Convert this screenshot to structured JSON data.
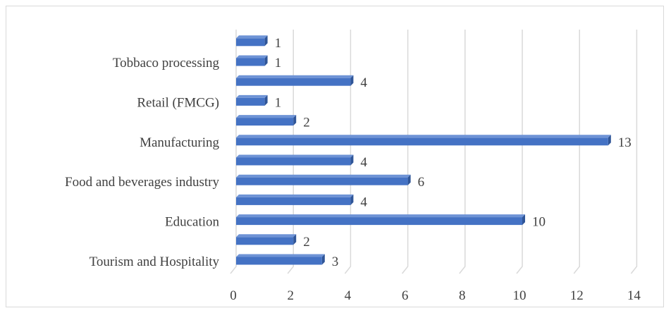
{
  "chart_data": {
    "type": "bar",
    "orientation": "horizontal",
    "title": "",
    "xlabel": "",
    "ylabel": "",
    "categories": [
      "Tourism and Hospitality",
      "",
      "Education",
      "",
      "Food and beverages industry",
      "",
      "Manufacturing",
      "",
      "Retail (FMCG)",
      "",
      "Tobbaco processing",
      ""
    ],
    "values": [
      3,
      2,
      10,
      4,
      6,
      4,
      13,
      2,
      1,
      4,
      1,
      1
    ],
    "xlim": [
      0,
      14
    ],
    "x_ticks": [
      "0",
      "2",
      "4",
      "6",
      "8",
      "10",
      "12",
      "14"
    ],
    "grid": "vertical",
    "legend": "none",
    "bar_color": "#4472c4",
    "bar_edge_color": "#2f5597",
    "grid_color": "#d9d9d9"
  }
}
